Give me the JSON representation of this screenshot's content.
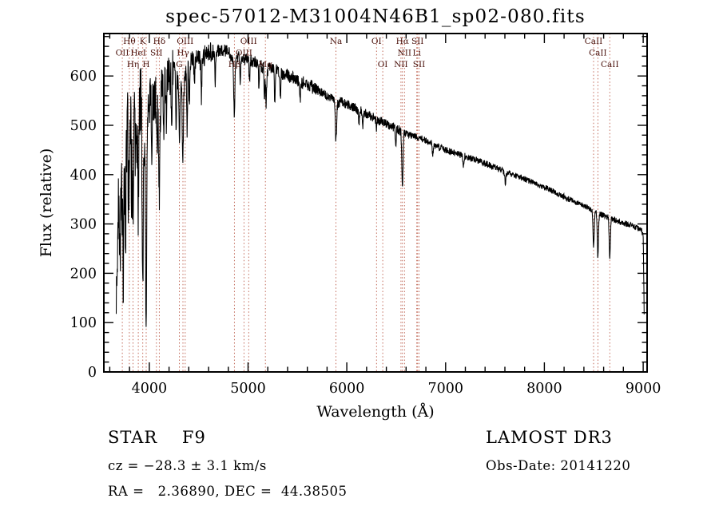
{
  "annotations": {
    "class_label": "STAR    F9",
    "survey": "LAMOST DR3",
    "cz": "cz = −28.3 ± 3.1 km/s",
    "obs_date": "Obs-Date: 20141220",
    "radec": "RA =   2.36890, DEC =  44.38505"
  },
  "chart_data": {
    "type": "line",
    "title": "spec-57012-M31004N46B1_sp02-080.fits",
    "xlabel": "Wavelength (Å)",
    "ylabel": "Flux (relative)",
    "xlim": [
      3540,
      9040
    ],
    "ylim": [
      0,
      686
    ],
    "xticks": [
      4000,
      5000,
      6000,
      7000,
      8000,
      9000
    ],
    "yticks": [
      0,
      100,
      200,
      300,
      400,
      500,
      600
    ],
    "x_minor_step": 200,
    "y_minor_step": 20,
    "grid": false,
    "legend": "none",
    "line_color": "#000000",
    "marker_line_color": "#bb5b49",
    "marker_label_color": "#4a120c",
    "sample_range": [
      3665,
      9012
    ],
    "sample_step": 2.5,
    "continuum": [
      [
        3665,
        230
      ],
      [
        3680,
        340
      ],
      [
        3695,
        280
      ],
      [
        3710,
        410
      ],
      [
        3725,
        440
      ],
      [
        3740,
        340
      ],
      [
        3755,
        470
      ],
      [
        3770,
        430
      ],
      [
        3785,
        515
      ],
      [
        3800,
        480
      ],
      [
        3815,
        535
      ],
      [
        3830,
        460
      ],
      [
        3845,
        545
      ],
      [
        3860,
        565
      ],
      [
        3875,
        495
      ],
      [
        3890,
        480
      ],
      [
        3905,
        555
      ],
      [
        3920,
        545
      ],
      [
        3935,
        440
      ],
      [
        3950,
        480
      ],
      [
        3968,
        390
      ],
      [
        3985,
        540
      ],
      [
        4000,
        550
      ],
      [
        4020,
        560
      ],
      [
        4045,
        550
      ],
      [
        4070,
        558
      ],
      [
        4100,
        525
      ],
      [
        4130,
        580
      ],
      [
        4160,
        578
      ],
      [
        4190,
        592
      ],
      [
        4220,
        602
      ],
      [
        4250,
        612
      ],
      [
        4280,
        595
      ],
      [
        4310,
        585
      ],
      [
        4340,
        575
      ],
      [
        4370,
        612
      ],
      [
        4400,
        625
      ],
      [
        4440,
        632
      ],
      [
        4480,
        636
      ],
      [
        4520,
        632
      ],
      [
        4560,
        641
      ],
      [
        4600,
        646
      ],
      [
        4650,
        649
      ],
      [
        4700,
        651
      ],
      [
        4750,
        653
      ],
      [
        4800,
        649
      ],
      [
        4861,
        632
      ],
      [
        4900,
        641
      ],
      [
        4950,
        636
      ],
      [
        5000,
        633
      ],
      [
        5050,
        629
      ],
      [
        5100,
        626
      ],
      [
        5150,
        617
      ],
      [
        5200,
        613
      ],
      [
        5250,
        616
      ],
      [
        5300,
        609
      ],
      [
        5350,
        605
      ],
      [
        5400,
        601
      ],
      [
        5450,
        597
      ],
      [
        5500,
        591
      ],
      [
        5550,
        587
      ],
      [
        5600,
        583
      ],
      [
        5650,
        577
      ],
      [
        5700,
        572
      ],
      [
        5750,
        567
      ],
      [
        5800,
        561
      ],
      [
        5850,
        557
      ],
      [
        5893,
        542
      ],
      [
        5940,
        549
      ],
      [
        6000,
        543
      ],
      [
        6060,
        537
      ],
      [
        6120,
        531
      ],
      [
        6180,
        525
      ],
      [
        6240,
        519
      ],
      [
        6300,
        513
      ],
      [
        6360,
        507
      ],
      [
        6420,
        501
      ],
      [
        6480,
        495
      ],
      [
        6540,
        489
      ],
      [
        6600,
        483
      ],
      [
        6660,
        479
      ],
      [
        6720,
        475
      ],
      [
        6780,
        471
      ],
      [
        6840,
        465
      ],
      [
        6900,
        459
      ],
      [
        6960,
        453
      ],
      [
        7020,
        449
      ],
      [
        7080,
        445
      ],
      [
        7140,
        441
      ],
      [
        7200,
        437
      ],
      [
        7260,
        433
      ],
      [
        7320,
        429
      ],
      [
        7380,
        424
      ],
      [
        7440,
        419
      ],
      [
        7500,
        414
      ],
      [
        7560,
        409
      ],
      [
        7620,
        404
      ],
      [
        7680,
        400
      ],
      [
        7740,
        396
      ],
      [
        7800,
        391
      ],
      [
        7860,
        386
      ],
      [
        7920,
        381
      ],
      [
        7980,
        376
      ],
      [
        8040,
        371
      ],
      [
        8100,
        365
      ],
      [
        8160,
        359
      ],
      [
        8220,
        353
      ],
      [
        8280,
        347
      ],
      [
        8340,
        341
      ],
      [
        8400,
        336
      ],
      [
        8460,
        331
      ],
      [
        8520,
        324
      ],
      [
        8580,
        319
      ],
      [
        8640,
        314
      ],
      [
        8700,
        309
      ],
      [
        8760,
        305
      ],
      [
        8820,
        301
      ],
      [
        8880,
        297
      ],
      [
        8940,
        292
      ],
      [
        8985,
        288
      ],
      [
        9000,
        276
      ],
      [
        9006,
        190
      ],
      [
        9012,
        85
      ]
    ],
    "absorption_lines": [
      [
        3672,
        150,
        4
      ],
      [
        3705,
        180,
        4
      ],
      [
        3727,
        110,
        5
      ],
      [
        3737,
        200,
        4
      ],
      [
        3759,
        230,
        4
      ],
      [
        3788,
        150,
        3
      ],
      [
        3798,
        160,
        5
      ],
      [
        3820,
        140,
        4
      ],
      [
        3835,
        175,
        5
      ],
      [
        3860,
        120,
        4
      ],
      [
        3889,
        155,
        5
      ],
      [
        3933,
        235,
        6
      ],
      [
        3968,
        275,
        6
      ],
      [
        4026,
        95,
        4
      ],
      [
        4077,
        105,
        4
      ],
      [
        4101,
        160,
        6
      ],
      [
        4144,
        95,
        4
      ],
      [
        4172,
        75,
        4
      ],
      [
        4226,
        115,
        4
      ],
      [
        4271,
        95,
        4
      ],
      [
        4305,
        115,
        6
      ],
      [
        4340,
        145,
        6
      ],
      [
        4383,
        125,
        4
      ],
      [
        4405,
        95,
        4
      ],
      [
        4457,
        65,
        4
      ],
      [
        4528,
        75,
        4
      ],
      [
        4668,
        65,
        4
      ],
      [
        4861,
        115,
        6
      ],
      [
        4921,
        55,
        4
      ],
      [
        5015,
        50,
        4
      ],
      [
        5110,
        45,
        4
      ],
      [
        5167,
        65,
        4
      ],
      [
        5183,
        75,
        5
      ],
      [
        5270,
        60,
        5
      ],
      [
        5328,
        50,
        4
      ],
      [
        5528,
        40,
        4
      ],
      [
        5890,
        75,
        6
      ],
      [
        6122,
        35,
        4
      ],
      [
        6162,
        30,
        4
      ],
      [
        6300,
        25,
        4
      ],
      [
        6495,
        35,
        4
      ],
      [
        6563,
        118,
        6
      ],
      [
        6870,
        22,
        5
      ],
      [
        7180,
        18,
        5
      ],
      [
        7605,
        22,
        6
      ],
      [
        8498,
        72,
        6
      ],
      [
        8542,
        90,
        6
      ],
      [
        8662,
        80,
        6
      ]
    ],
    "noise_regions": [
      [
        3660,
        3950,
        85
      ],
      [
        3950,
        4250,
        48
      ],
      [
        4250,
        4650,
        22
      ],
      [
        4650,
        5700,
        13
      ],
      [
        5700,
        6600,
        10
      ],
      [
        6600,
        7600,
        7
      ],
      [
        7600,
        9012,
        6
      ]
    ],
    "spectral_line_markers": [
      {
        "label": "Hθ",
        "wavelength": 3798.0,
        "row": 1
      },
      {
        "label": "K",
        "wavelength": 3933.7,
        "row": 1
      },
      {
        "label": "Hδ",
        "wavelength": 4101.7,
        "row": 1
      },
      {
        "label": "OIII",
        "wavelength": 4363.2,
        "row": 1
      },
      {
        "label": "OIII",
        "wavelength": 5006.8,
        "row": 1
      },
      {
        "label": "Na",
        "wavelength": 5889.9,
        "row": 1
      },
      {
        "label": "OI",
        "wavelength": 6300.3,
        "row": 1
      },
      {
        "label": "Hα",
        "wavelength": 6562.8,
        "row": 1
      },
      {
        "label": "SII",
        "wavelength": 6716.4,
        "row": 1
      },
      {
        "label": "CaII",
        "wavelength": 8498.0,
        "row": 1
      },
      {
        "label": "OII",
        "wavelength": 3727.1,
        "row": 2
      },
      {
        "label": "HeI",
        "wavelength": 3889.0,
        "row": 2
      },
      {
        "label": "SII",
        "wavelength": 4072.0,
        "row": 2
      },
      {
        "label": "Hγ",
        "wavelength": 4340.5,
        "row": 2
      },
      {
        "label": "OIII",
        "wavelength": 4958.9,
        "row": 2
      },
      {
        "label": "NII",
        "wavelength": 6583.4,
        "row": 2
      },
      {
        "label": "Li",
        "wavelength": 6707.8,
        "row": 2
      },
      {
        "label": "CaII",
        "wavelength": 8542.1,
        "row": 2
      },
      {
        "label": "Hη",
        "wavelength": 3835.4,
        "row": 3
      },
      {
        "label": "H",
        "wavelength": 3968.5,
        "row": 3
      },
      {
        "label": "G",
        "wavelength": 4304.4,
        "row": 3
      },
      {
        "label": "Hβ",
        "wavelength": 4861.3,
        "row": 3
      },
      {
        "label": "Mg",
        "wavelength": 5175.3,
        "row": 3
      },
      {
        "label": "OI",
        "wavelength": 6363.8,
        "row": 3
      },
      {
        "label": "NII",
        "wavelength": 6548.1,
        "row": 3
      },
      {
        "label": "SII",
        "wavelength": 6730.8,
        "row": 3
      },
      {
        "label": "CaII",
        "wavelength": 8662.1,
        "row": 3
      }
    ]
  }
}
